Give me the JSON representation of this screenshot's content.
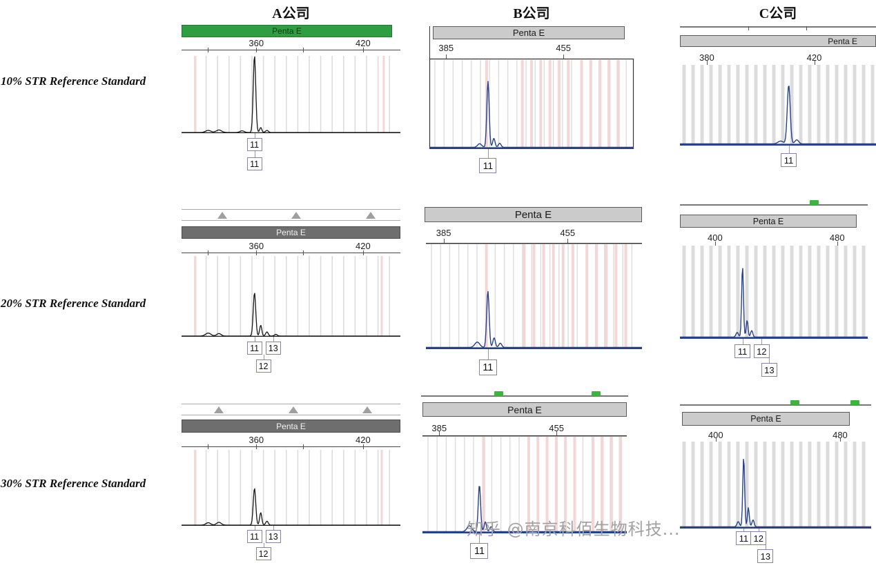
{
  "figure": {
    "columns": [
      "A公司",
      "B公司",
      "C公司"
    ],
    "rows": [
      "10% STR Reference Standard",
      "20% STR Reference Standard",
      "30% STR Reference Standard"
    ],
    "watermark": "知乎 @南京科佰生物科技..."
  },
  "colors": {
    "trace_black": "#161616",
    "trace_blue": "#24408e",
    "bar_green": "#2f9e41",
    "bar_light": "#cbcbcb",
    "bar_dark": "#6e6e6e",
    "bin_gray": "#dcdcdc",
    "bin_pink": "#f3d6d6",
    "marker_green": "#3cb53c",
    "box_border": "#8585a3"
  },
  "chart_data": [
    {
      "id": "a1",
      "type": "electropherogram",
      "company": "A公司",
      "sample": "10% STR Reference Standard",
      "locus": "Penta E",
      "bar_style": "green",
      "trace": "black",
      "x_range": [
        318,
        441
      ],
      "x_ticks": [
        {
          "bp": 360,
          "label": "360"
        },
        {
          "bp": 420,
          "label": "420"
        }
      ],
      "peaks": [
        {
          "bp": 333,
          "h": 0.025,
          "sigma": 1.5
        },
        {
          "bp": 339,
          "h": 0.03,
          "sigma": 1.5
        },
        {
          "bp": 352,
          "h": 0.02,
          "sigma": 1.2
        },
        {
          "bp": 359,
          "h": 0.93,
          "sigma": 0.7
        },
        {
          "bp": 362.5,
          "h": 0.06,
          "sigma": 0.6
        },
        {
          "bp": 366,
          "h": 0.025,
          "sigma": 0.8
        }
      ],
      "allele_calls": [
        {
          "label": "11",
          "bp": 359,
          "row": 0
        },
        {
          "label": "11",
          "bp": 359,
          "row": 1
        }
      ]
    },
    {
      "id": "b1",
      "type": "electropherogram",
      "company": "B公司",
      "sample": "10% STR Reference Standard",
      "locus": "Penta E",
      "bar_style": "light",
      "trace": "blue",
      "x_range": [
        375,
        497
      ],
      "x_ticks": [
        {
          "bp": 385,
          "label": "385"
        },
        {
          "bp": 455,
          "label": "455"
        }
      ],
      "peaks": [
        {
          "bp": 405,
          "h": 0.04,
          "sigma": 1.2
        },
        {
          "bp": 410,
          "h": 0.73,
          "sigma": 0.7
        },
        {
          "bp": 413.5,
          "h": 0.1,
          "sigma": 0.7
        },
        {
          "bp": 417,
          "h": 0.045,
          "sigma": 0.8
        }
      ],
      "allele_calls": [
        {
          "label": "11",
          "bp": 410,
          "row": 0
        }
      ]
    },
    {
      "id": "c1",
      "type": "electropherogram",
      "company": "C公司",
      "sample": "10% STR Reference Standard",
      "locus": "Penta E",
      "bar_style": "light",
      "trace": "blue",
      "x_range": [
        370,
        443
      ],
      "x_ticks": [
        {
          "bp": 380,
          "label": "380"
        },
        {
          "bp": 420,
          "label": "420"
        }
      ],
      "peaks": [
        {
          "bp": 407.5,
          "h": 0.035,
          "sigma": 1.0
        },
        {
          "bp": 410.5,
          "h": 0.73,
          "sigma": 0.55
        },
        {
          "bp": 413.5,
          "h": 0.05,
          "sigma": 0.7
        }
      ],
      "allele_calls": [
        {
          "label": "11",
          "bp": 410.5,
          "row": 0
        }
      ]
    },
    {
      "id": "a2",
      "type": "electropherogram",
      "company": "A公司",
      "sample": "20% STR Reference Standard",
      "locus": "Penta E",
      "bar_style": "dark",
      "trace": "black",
      "x_range": [
        318,
        441
      ],
      "x_ticks": [
        {
          "bp": 360,
          "label": "360"
        },
        {
          "bp": 420,
          "label": "420"
        }
      ],
      "peaks": [
        {
          "bp": 333,
          "h": 0.035,
          "sigma": 1.5
        },
        {
          "bp": 339,
          "h": 0.03,
          "sigma": 1.2
        },
        {
          "bp": 359,
          "h": 0.52,
          "sigma": 0.7
        },
        {
          "bp": 362.5,
          "h": 0.13,
          "sigma": 0.6
        },
        {
          "bp": 366,
          "h": 0.05,
          "sigma": 0.7
        },
        {
          "bp": 371,
          "h": 0.02,
          "sigma": 0.8
        }
      ],
      "allele_calls": [
        {
          "label": "11",
          "bp": 359,
          "row": 0
        },
        {
          "label": "13",
          "bp": 369.5,
          "row": 0
        },
        {
          "label": "12",
          "bp": 364,
          "row": 1
        }
      ]
    },
    {
      "id": "b2",
      "type": "electropherogram",
      "company": "B公司",
      "sample": "20% STR Reference Standard",
      "locus": "Penta E",
      "bar_style": "light",
      "trace": "blue",
      "x_range": [
        375,
        497
      ],
      "x_ticks": [
        {
          "bp": 385,
          "label": "385"
        },
        {
          "bp": 455,
          "label": "455"
        }
      ],
      "peaks": [
        {
          "bp": 404,
          "h": 0.05,
          "sigma": 1.4
        },
        {
          "bp": 410,
          "h": 0.53,
          "sigma": 0.7
        },
        {
          "bp": 413.5,
          "h": 0.09,
          "sigma": 0.7
        },
        {
          "bp": 417,
          "h": 0.04,
          "sigma": 0.8
        }
      ],
      "allele_calls": [
        {
          "label": "11",
          "bp": 410,
          "row": 0
        }
      ]
    },
    {
      "id": "c2",
      "type": "electropherogram",
      "company": "C公司",
      "sample": "20% STR Reference Standard",
      "locus": "Penta E",
      "bar_style": "light",
      "trace": "blue",
      "x_range": [
        377,
        500
      ],
      "x_ticks": [
        {
          "bp": 400,
          "label": "400"
        },
        {
          "bp": 480,
          "label": "480"
        }
      ],
      "peaks": [
        {
          "bp": 414.5,
          "h": 0.05,
          "sigma": 0.8
        },
        {
          "bp": 418,
          "h": 0.76,
          "sigma": 0.6
        },
        {
          "bp": 421,
          "h": 0.18,
          "sigma": 0.6
        },
        {
          "bp": 424,
          "h": 0.07,
          "sigma": 0.7
        }
      ],
      "allele_calls": [
        {
          "label": "11",
          "bp": 418,
          "row": 0
        },
        {
          "label": "12",
          "bp": 430.5,
          "row": 0
        },
        {
          "label": "13",
          "bp": 435.5,
          "row": 1
        }
      ]
    },
    {
      "id": "a3",
      "type": "electropherogram",
      "company": "A公司",
      "sample": "30% STR Reference Standard",
      "locus": "Penta E",
      "bar_style": "dark",
      "trace": "black",
      "x_range": [
        318,
        441
      ],
      "x_ticks": [
        {
          "bp": 360,
          "label": "360"
        },
        {
          "bp": 420,
          "label": "420"
        }
      ],
      "peaks": [
        {
          "bp": 333,
          "h": 0.03,
          "sigma": 1.3
        },
        {
          "bp": 339,
          "h": 0.035,
          "sigma": 1.3
        },
        {
          "bp": 359,
          "h": 0.47,
          "sigma": 0.7
        },
        {
          "bp": 362.5,
          "h": 0.16,
          "sigma": 0.6
        },
        {
          "bp": 366,
          "h": 0.05,
          "sigma": 0.7
        }
      ],
      "allele_calls": [
        {
          "label": "11",
          "bp": 359,
          "row": 0
        },
        {
          "label": "13",
          "bp": 369.5,
          "row": 0
        },
        {
          "label": "12",
          "bp": 364,
          "row": 1
        }
      ]
    },
    {
      "id": "b3",
      "type": "electropherogram",
      "company": "B公司",
      "sample": "30% STR Reference Standard",
      "locus": "Penta E",
      "bar_style": "light",
      "trace": "blue",
      "x_range": [
        375,
        497
      ],
      "x_ticks": [
        {
          "bp": 385,
          "label": "385"
        },
        {
          "bp": 455,
          "label": "455"
        }
      ],
      "peaks": [
        {
          "bp": 403,
          "h": 0.06,
          "sigma": 1.4
        },
        {
          "bp": 409,
          "h": 0.48,
          "sigma": 0.7
        },
        {
          "bp": 412.5,
          "h": 0.1,
          "sigma": 0.7
        },
        {
          "bp": 416,
          "h": 0.05,
          "sigma": 0.8
        }
      ],
      "allele_calls": [
        {
          "label": "11",
          "bp": 409,
          "row": 0
        }
      ]
    },
    {
      "id": "c3",
      "type": "electropherogram",
      "company": "C公司",
      "sample": "30% STR Reference Standard",
      "locus": "Penta E",
      "bar_style": "light",
      "trace": "blue",
      "x_range": [
        377,
        500
      ],
      "x_ticks": [
        {
          "bp": 400,
          "label": "400"
        },
        {
          "bp": 480,
          "label": "480"
        }
      ],
      "peaks": [
        {
          "bp": 414.5,
          "h": 0.06,
          "sigma": 0.8
        },
        {
          "bp": 418,
          "h": 0.8,
          "sigma": 0.6
        },
        {
          "bp": 421,
          "h": 0.22,
          "sigma": 0.6
        },
        {
          "bp": 424,
          "h": 0.08,
          "sigma": 0.7
        }
      ],
      "allele_calls": [
        {
          "label": "11",
          "bp": 418,
          "row": 0
        },
        {
          "label": "12",
          "bp": 427.5,
          "row": 0
        },
        {
          "label": "13",
          "bp": 432,
          "row": 1
        }
      ]
    }
  ]
}
